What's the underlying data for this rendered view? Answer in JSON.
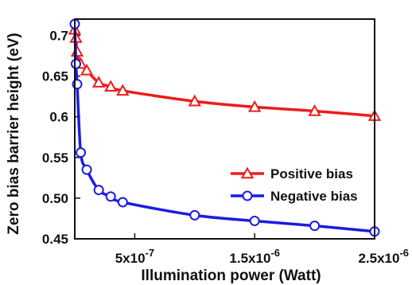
{
  "chart_data": {
    "type": "line",
    "xlabel": "Illumination power (Watt)",
    "ylabel": "Zero bias barrier height (eV)",
    "xlim": [
      0,
      2.5e-06
    ],
    "ylim": [
      0.45,
      0.72
    ],
    "x_ticks": [
      {
        "value": 5e-07,
        "mantissa": "5x10",
        "exponent": "-7"
      },
      {
        "value": 1.5e-06,
        "mantissa": "1.5x10",
        "exponent": "-6"
      },
      {
        "value": 2.5e-06,
        "mantissa": "2.5x10",
        "exponent": "-6"
      }
    ],
    "y_ticks": [
      {
        "value": 0.45,
        "label": "0.45"
      },
      {
        "value": 0.5,
        "label": "0.50"
      },
      {
        "value": 0.55,
        "label": "0.55"
      },
      {
        "value": 0.6,
        "label": "0.6"
      },
      {
        "value": 0.65,
        "label": "0.65"
      },
      {
        "value": 0.7,
        "label": "0.7"
      }
    ],
    "grid": false,
    "legend_position": "right",
    "series": [
      {
        "name": "Positive bias",
        "color": "#ee1c1c",
        "marker": "triangle",
        "x": [
          0,
          1e-08,
          2e-08,
          5e-08,
          1e-07,
          2e-07,
          3e-07,
          4e-07,
          1e-06,
          1.5e-06,
          2e-06,
          2.5e-06
        ],
        "y": [
          0.707,
          0.697,
          0.68,
          0.665,
          0.657,
          0.642,
          0.637,
          0.632,
          0.619,
          0.612,
          0.607,
          0.601
        ]
      },
      {
        "name": "Negative bias",
        "color": "#1c1ce0",
        "marker": "circle",
        "x": [
          0,
          1e-08,
          2e-08,
          5e-08,
          1e-07,
          2e-07,
          3e-07,
          4e-07,
          1e-06,
          1.5e-06,
          2e-06,
          2.5e-06
        ],
        "y": [
          0.714,
          0.665,
          0.64,
          0.556,
          0.535,
          0.51,
          0.502,
          0.495,
          0.479,
          0.472,
          0.466,
          0.459
        ]
      }
    ]
  }
}
